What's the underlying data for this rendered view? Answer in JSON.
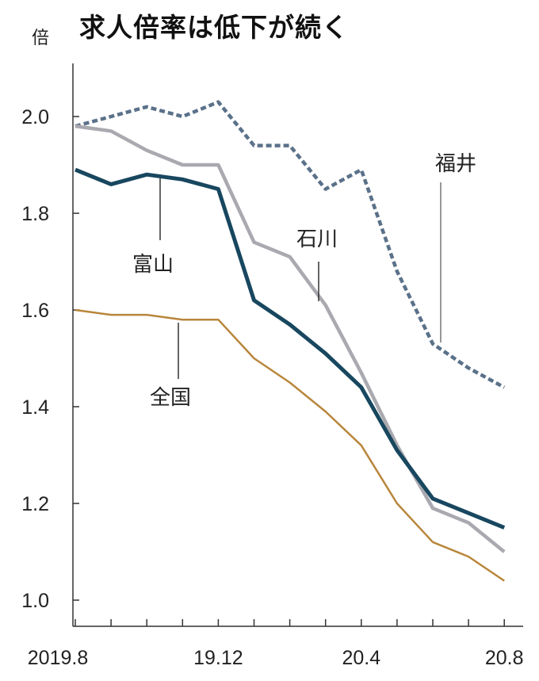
{
  "chart_data": {
    "type": "line",
    "title": "求人倍率は低下が続く",
    "ylabel": "倍",
    "xlabel": "",
    "ylim": [
      1.0,
      2.1
    ],
    "y_ticks": [
      "1.0",
      "1.2",
      "1.4",
      "1.6",
      "1.8",
      "2.0"
    ],
    "x": [
      "2019.8",
      "2019.9",
      "2019.10",
      "2019.11",
      "2019.12",
      "2020.1",
      "2020.2",
      "2020.3",
      "2020.4",
      "2020.5",
      "2020.6",
      "2020.7",
      "2020.8"
    ],
    "x_tick_labels": [
      {
        "index": 0,
        "label": "2019.8"
      },
      {
        "index": 4,
        "label": "19.12"
      },
      {
        "index": 8,
        "label": "20.4"
      },
      {
        "index": 12,
        "label": "20.8"
      }
    ],
    "grid": false,
    "series": [
      {
        "name": "福井",
        "color": "#5a7189",
        "style": "dashed",
        "values": [
          1.98,
          2.0,
          2.02,
          2.0,
          2.03,
          1.94,
          1.94,
          1.85,
          1.89,
          1.68,
          1.53,
          1.48,
          1.44
        ]
      },
      {
        "name": "石川",
        "color": "#a9a9b0",
        "style": "solid",
        "values": [
          1.98,
          1.97,
          1.93,
          1.9,
          1.9,
          1.74,
          1.71,
          1.61,
          1.47,
          1.32,
          1.19,
          1.16,
          1.1
        ]
      },
      {
        "name": "富山",
        "color": "#18475f",
        "style": "solid",
        "values": [
          1.89,
          1.86,
          1.88,
          1.87,
          1.85,
          1.62,
          1.57,
          1.51,
          1.44,
          1.31,
          1.21,
          1.18,
          1.15
        ]
      },
      {
        "name": "全国",
        "color": "#b8863b",
        "style": "solid",
        "values": [
          1.6,
          1.59,
          1.59,
          1.58,
          1.58,
          1.5,
          1.45,
          1.39,
          1.32,
          1.2,
          1.12,
          1.09,
          1.04
        ]
      }
    ]
  }
}
